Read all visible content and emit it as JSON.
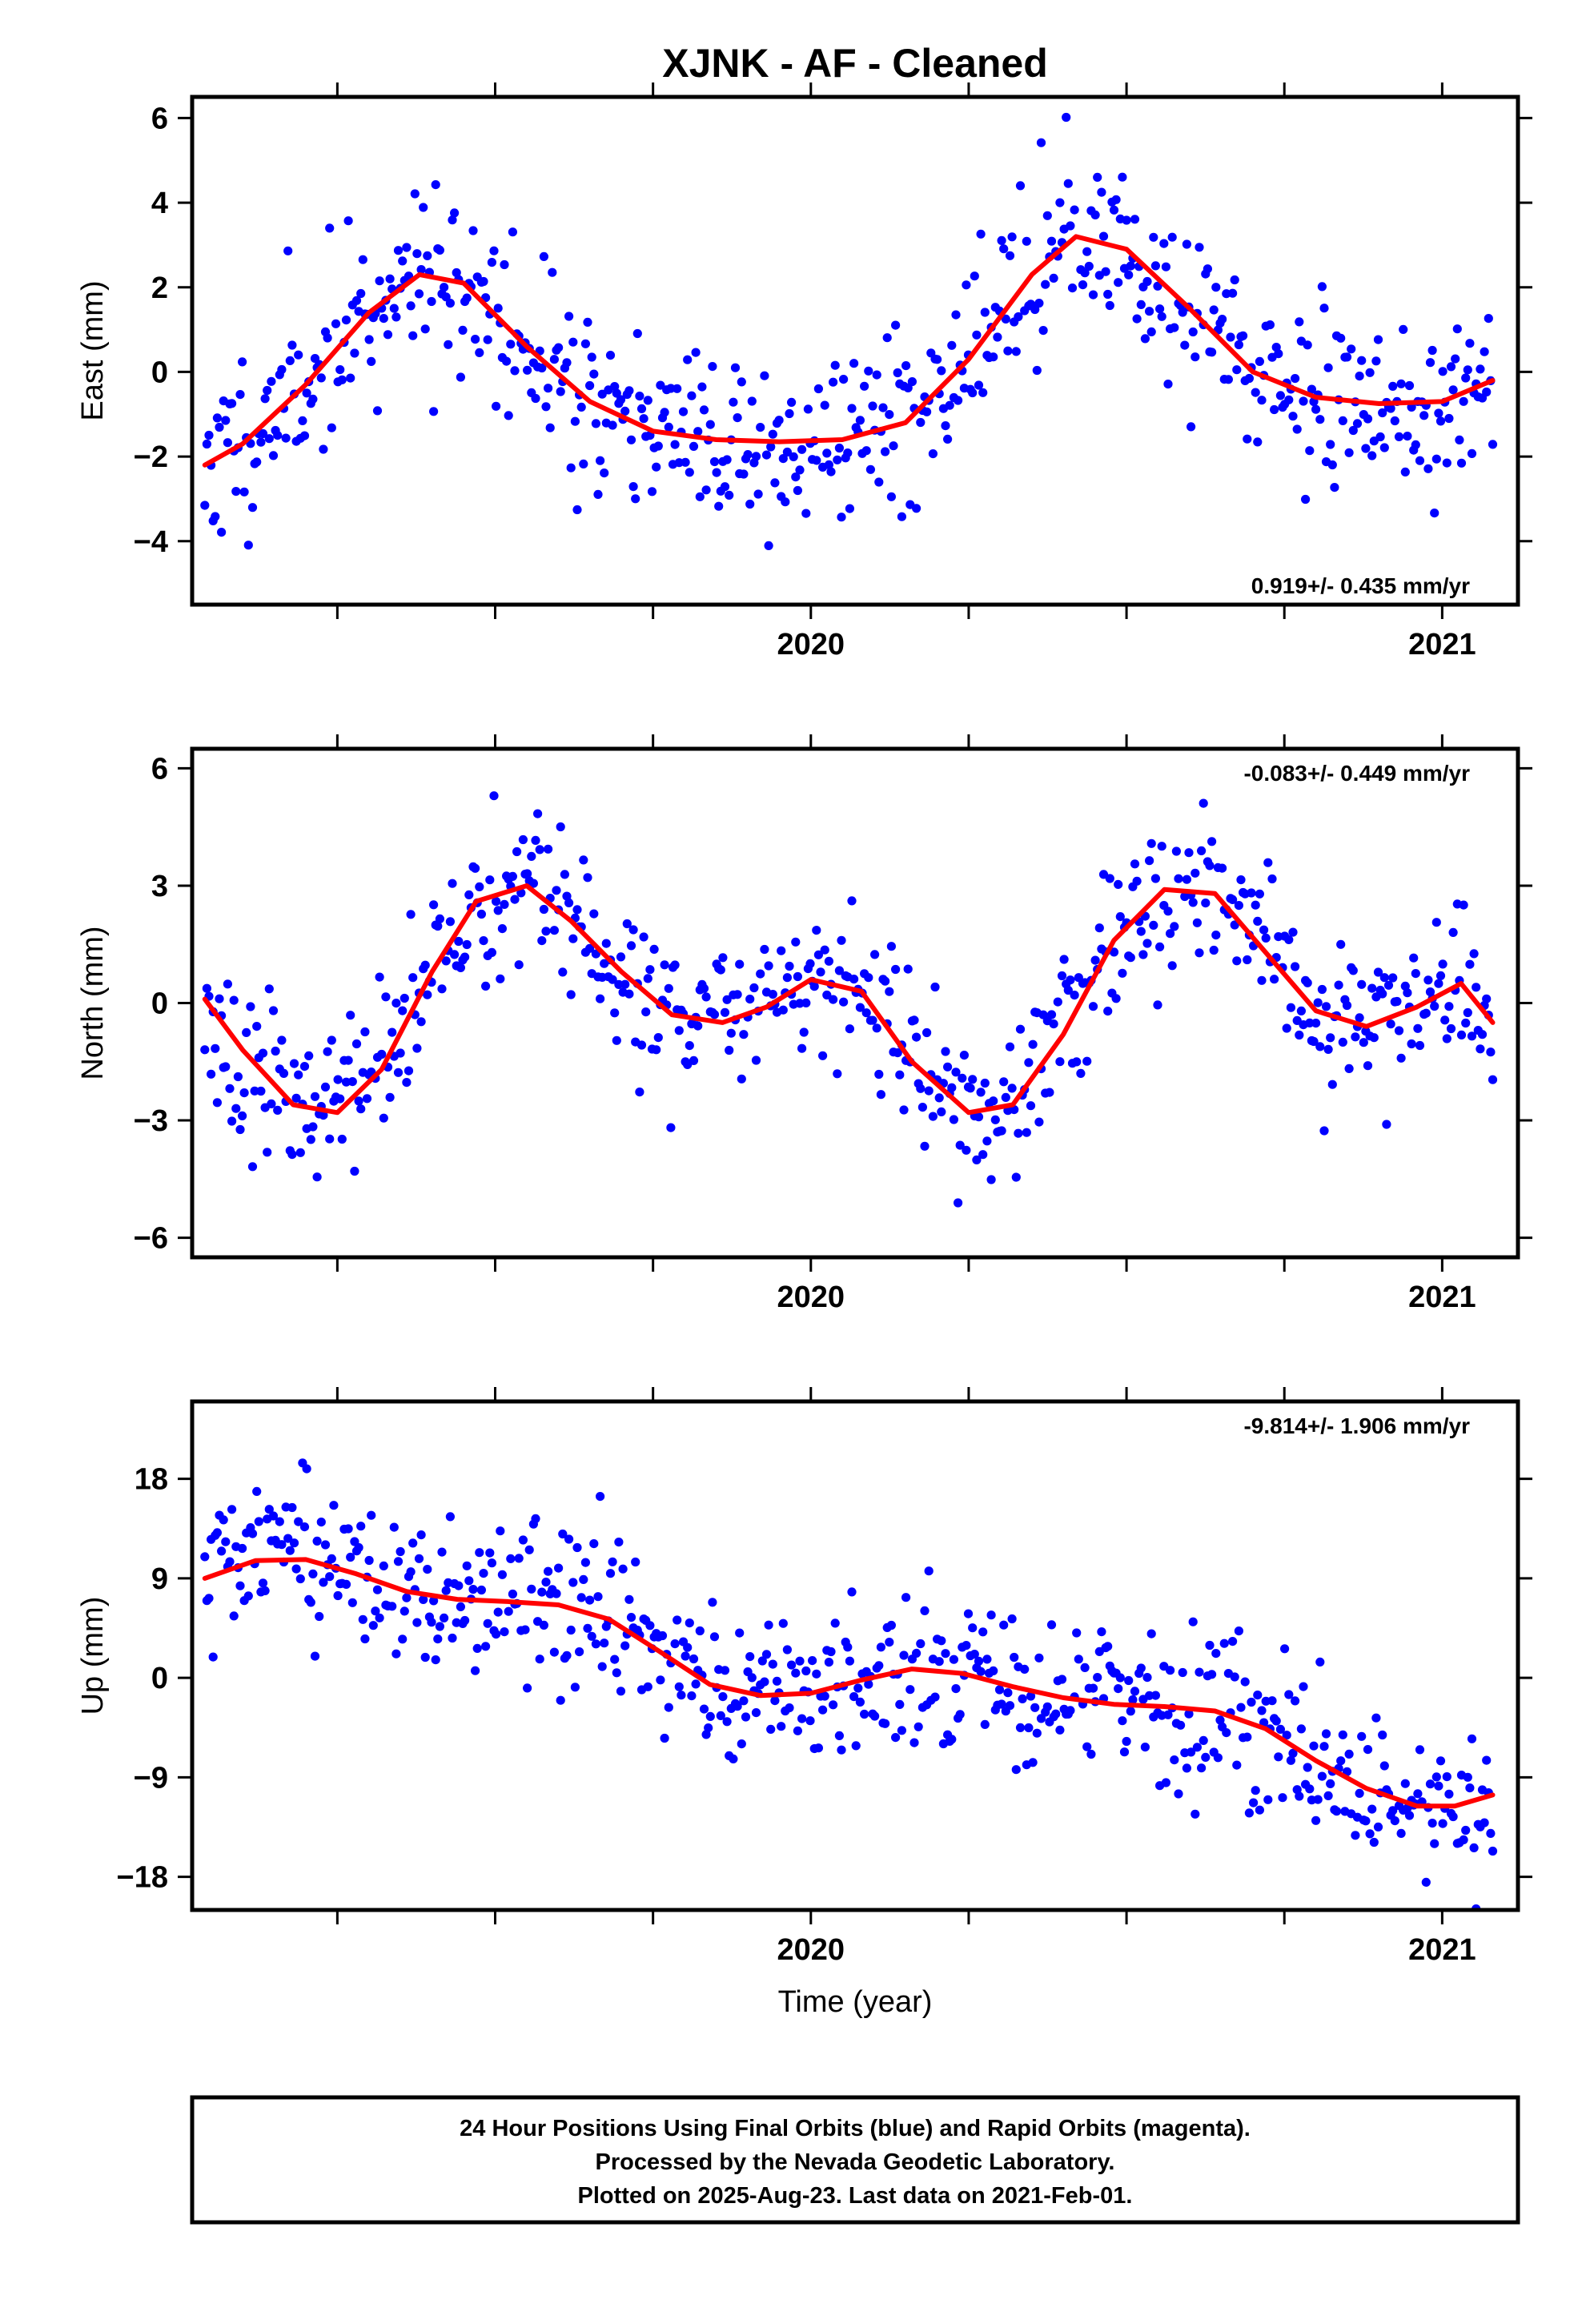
{
  "title": "XJNK  - AF - Cleaned",
  "xlabel": "Time (year)",
  "footer": {
    "line1": "24 Hour Positions Using Final Orbits (blue) and Rapid Orbits (magenta).",
    "line2": "Processed by the Nevada Geodetic Laboratory.",
    "line3": "Plotted on 2025-Aug-23. Last data on 2021-Feb-01."
  },
  "colors": {
    "final_orbits": "#0000ff",
    "rapid_orbits": "#ff00ff",
    "model_fit": "#ff0000"
  },
  "chart_data": [
    {
      "type": "scatter",
      "component": "east",
      "ylabel": "East (mm)",
      "xlim": [
        2019.02,
        2021.12
      ],
      "ylim": [
        -5.5,
        6.5
      ],
      "yticks": [
        -4,
        -2,
        0,
        2,
        4,
        6
      ],
      "xticks": [
        2020,
        2021
      ],
      "xticks_minor": [
        2019.25,
        2019.5,
        2019.75,
        2020.25,
        2020.5,
        2020.75
      ],
      "xaxis_labels_on": "bottom",
      "rate": "0.919+/- 0.435 mm/yr",
      "rate_position": "bottom-right",
      "model": {
        "x": [
          2019.04,
          2019.1,
          2019.2,
          2019.3,
          2019.38,
          2019.45,
          2019.55,
          2019.65,
          2019.75,
          2019.85,
          2019.95,
          2020.05,
          2020.15,
          2020.25,
          2020.35,
          2020.42,
          2020.5,
          2020.6,
          2020.7,
          2020.8,
          2020.9,
          2021.0,
          2021.08
        ],
        "y": [
          -2.2,
          -1.7,
          -0.3,
          1.4,
          2.3,
          2.1,
          0.6,
          -0.7,
          -1.4,
          -1.6,
          -1.65,
          -1.6,
          -1.2,
          0.3,
          2.3,
          3.2,
          2.9,
          1.5,
          0.0,
          -0.6,
          -0.75,
          -0.7,
          -0.2
        ]
      },
      "points": {
        "center": 0.9,
        "amplitude": 2.4,
        "phase": 2019.38,
        "trend": 0.0,
        "noise": 1.0,
        "count": 620,
        "seed": 11
      }
    },
    {
      "type": "scatter",
      "component": "north",
      "ylabel": "North (mm)",
      "xlim": [
        2019.02,
        2021.12
      ],
      "ylim": [
        -6.5,
        6.5
      ],
      "yticks": [
        -6,
        -3,
        0,
        3,
        6
      ],
      "xticks": [
        2020,
        2021
      ],
      "xticks_minor": [
        2019.25,
        2019.5,
        2019.75,
        2020.25,
        2020.5,
        2020.75
      ],
      "xaxis_labels_on": "bottom",
      "rate": "-0.083+/- 0.449 mm/yr",
      "rate_position": "top-right",
      "model": {
        "x": [
          2019.04,
          2019.1,
          2019.18,
          2019.25,
          2019.32,
          2019.4,
          2019.47,
          2019.55,
          2019.62,
          2019.7,
          2019.78,
          2019.86,
          2019.93,
          2020.0,
          2020.08,
          2020.16,
          2020.25,
          2020.32,
          2020.4,
          2020.48,
          2020.56,
          2020.64,
          2020.72,
          2020.8,
          2020.88,
          2020.96,
          2021.03,
          2021.08
        ],
        "y": [
          0.1,
          -1.2,
          -2.6,
          -2.8,
          -1.7,
          0.8,
          2.6,
          3.0,
          2.1,
          0.8,
          -0.3,
          -0.5,
          -0.1,
          0.6,
          0.3,
          -1.5,
          -2.8,
          -2.6,
          -0.8,
          1.6,
          2.9,
          2.8,
          1.3,
          -0.2,
          -0.6,
          -0.1,
          0.5,
          -0.5
        ]
      },
      "points": {
        "noise": 1.0,
        "count": 620,
        "seed": 23
      }
    },
    {
      "type": "scatter",
      "component": "up",
      "ylabel": "Up (mm)",
      "xlim": [
        2019.02,
        2021.12
      ],
      "ylim": [
        -21,
        25
      ],
      "yticks": [
        -18,
        -9,
        0,
        9,
        18
      ],
      "xticks": [
        2020,
        2021
      ],
      "xticks_minor": [
        2019.25,
        2019.5,
        2019.75,
        2020.25,
        2020.5,
        2020.75
      ],
      "xaxis_labels_on": "bottom",
      "rate": "-9.814+/- 1.906 mm/yr",
      "rate_position": "top-right",
      "model": {
        "x": [
          2019.04,
          2019.12,
          2019.2,
          2019.28,
          2019.36,
          2019.44,
          2019.52,
          2019.6,
          2019.68,
          2019.76,
          2019.84,
          2019.92,
          2020.0,
          2020.08,
          2020.16,
          2020.24,
          2020.32,
          2020.4,
          2020.48,
          2020.56,
          2020.64,
          2020.72,
          2020.8,
          2020.88,
          2020.96,
          2021.02,
          2021.08
        ],
        "y": [
          9.0,
          10.6,
          10.7,
          9.4,
          7.8,
          7.1,
          6.9,
          6.6,
          5.3,
          2.4,
          -0.6,
          -1.6,
          -1.4,
          -0.2,
          0.8,
          0.4,
          -0.8,
          -1.8,
          -2.4,
          -2.6,
          -3.0,
          -4.6,
          -7.5,
          -10.0,
          -11.6,
          -11.6,
          -10.6
        ]
      },
      "points": {
        "noise": 3.6,
        "count": 620,
        "seed": 37
      }
    }
  ]
}
